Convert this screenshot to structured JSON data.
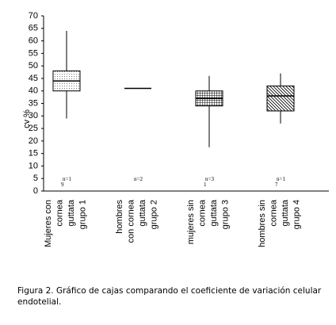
{
  "chart_data": {
    "type": "box",
    "y_label": "cv %",
    "categories": [
      [
        "Mujeres con",
        "cornea",
        "guttata",
        "grupo 1"
      ],
      [
        "hombres",
        "con cornea",
        "guttata",
        "grupo 2"
      ],
      [
        "mujeres sin",
        "cornea",
        "guttata",
        "grupo 3"
      ],
      [
        "hombres sin",
        "cornea",
        "guttata",
        "grupo 4"
      ]
    ],
    "n_labels": [
      [
        "n=1",
        "9"
      ],
      [
        "n=2"
      ],
      [
        "n=3",
        "1"
      ],
      [
        "n=1",
        "7"
      ]
    ],
    "series": [
      {
        "name": "grupo 1",
        "fill": "dots",
        "min": 29,
        "q1": 40,
        "median": 44,
        "q3": 48,
        "max": 64
      },
      {
        "name": "grupo 2",
        "fill": "none",
        "min": null,
        "q1": null,
        "median": 41,
        "q3": null,
        "max": null
      },
      {
        "name": "grupo 3",
        "fill": "grid",
        "min": 17.5,
        "q1": 34,
        "median": 37,
        "q3": 40,
        "max": 46
      },
      {
        "name": "grupo 4",
        "fill": "hatch",
        "min": 27,
        "q1": 32,
        "median": 38,
        "q3": 42,
        "max": 47
      }
    ],
    "ylim": [
      0,
      70
    ],
    "yticks": [
      0,
      5,
      10,
      15,
      20,
      25,
      30,
      35,
      40,
      45,
      50,
      55,
      60,
      65,
      70
    ]
  },
  "caption": "Figura 2. Gráfico de cajas comparando el coeficiente de variación celular endotelial."
}
